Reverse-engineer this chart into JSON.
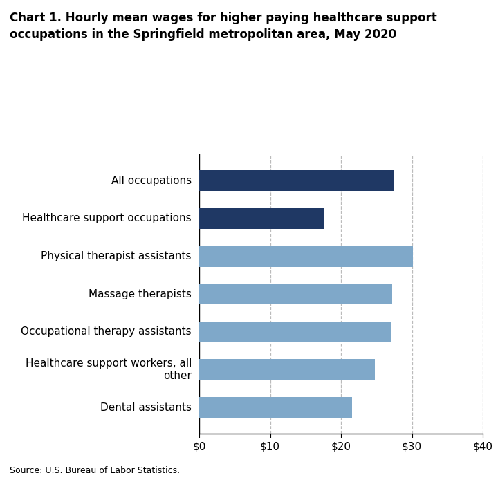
{
  "title": "Chart 1. Hourly mean wages for higher paying healthcare support\noccupations in the Springfield metropolitan area, May 2020",
  "categories": [
    "Dental assistants",
    "Healthcare support workers, all\nother",
    "Occupational therapy assistants",
    "Massage therapists",
    "Physical therapist assistants",
    "Healthcare support occupations",
    "All occupations"
  ],
  "values": [
    21.5,
    24.8,
    27.0,
    27.2,
    30.1,
    17.5,
    27.5
  ],
  "colors": [
    "#7fa8c9",
    "#7fa8c9",
    "#7fa8c9",
    "#7fa8c9",
    "#7fa8c9",
    "#1f3864",
    "#1f3864"
  ],
  "xlim": [
    0,
    40
  ],
  "xticks": [
    0,
    10,
    20,
    30,
    40
  ],
  "xticklabels": [
    "$0",
    "$10",
    "$20",
    "$30",
    "$40"
  ],
  "source": "Source: U.S. Bureau of Labor Statistics.",
  "grid_color": "#aaaaaa",
  "background_color": "#ffffff",
  "bar_height": 0.55,
  "title_fontsize": 12,
  "tick_fontsize": 11,
  "source_fontsize": 9
}
